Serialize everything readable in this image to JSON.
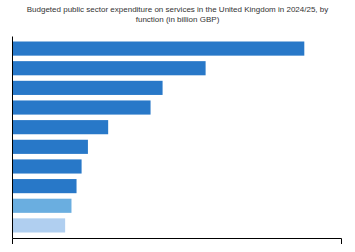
{
  "chart_data": {
    "type": "bar",
    "orientation": "horizontal",
    "title": "Budgeted public sector expenditure on services in the United Kingdom in 2024/25, by\nfunction (in billion GBP)",
    "categories": [
      null,
      null,
      null,
      null,
      null,
      null,
      null,
      null,
      null,
      null
    ],
    "values": [
      231.0,
      153.0,
      119.0,
      109.5,
      76.0,
      60.0,
      55.0,
      51.0,
      47.0,
      42.0
    ],
    "colors": [
      "#2878c8",
      "#2878c8",
      "#2878c8",
      "#2878c8",
      "#2878c8",
      "#2878c8",
      "#2878c8",
      "#2878c8",
      "#6aaee0",
      "#b0cff0"
    ],
    "xlim": [
      0,
      260
    ],
    "xticks": [],
    "grid": false,
    "tick_labels": false
  }
}
